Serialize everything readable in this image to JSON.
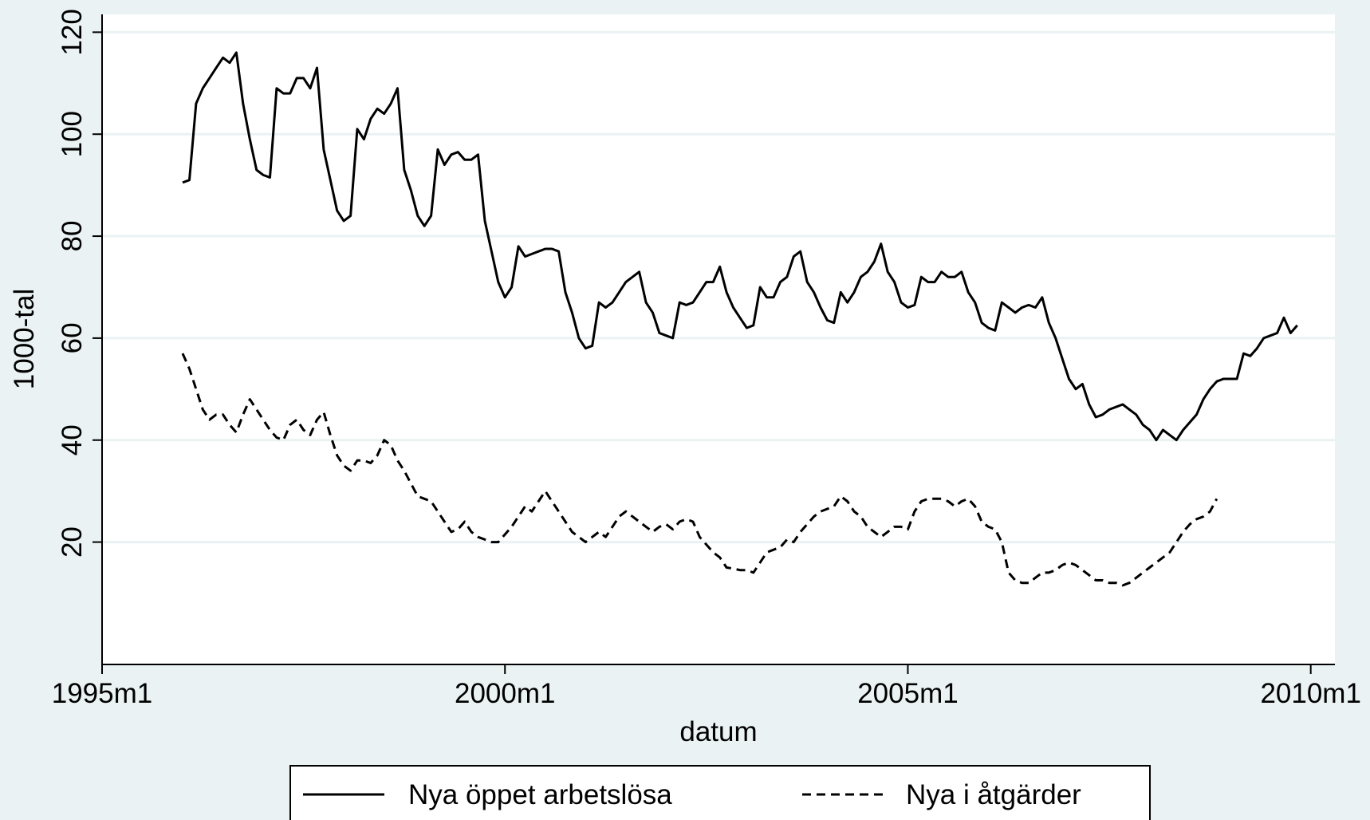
{
  "chart_data": {
    "type": "line",
    "xlabel": "datum",
    "ylabel": "1000-tal",
    "xlim": [
      1995.0,
      2010.3
    ],
    "ylim": [
      -4,
      123.5
    ],
    "x_ticks": [
      {
        "value": 1995.0,
        "label": "1995m1"
      },
      {
        "value": 2000.0,
        "label": "2000m1"
      },
      {
        "value": 2005.0,
        "label": "2005m1"
      },
      {
        "value": 2010.0,
        "label": "2010m1"
      }
    ],
    "y_ticks": [
      {
        "value": 20,
        "label": "20"
      },
      {
        "value": 40,
        "label": "40"
      },
      {
        "value": 60,
        "label": "60"
      },
      {
        "value": 80,
        "label": "80"
      },
      {
        "value": 100,
        "label": "100"
      },
      {
        "value": 120,
        "label": "120"
      }
    ],
    "grid": true,
    "legend_position": "bottom",
    "x_start": 1996.0,
    "x_step_months": 1,
    "series": [
      {
        "name": "Nya öppet arbetslösa",
        "style": "solid",
        "color": "#000000",
        "values": [
          90.5,
          91,
          106,
          109,
          111,
          113,
          115,
          114,
          116,
          106,
          99,
          93,
          92,
          91.5,
          109,
          108,
          108,
          111,
          111,
          109,
          113,
          97,
          91,
          85,
          83,
          84,
          101,
          99,
          103,
          105,
          104,
          106,
          109,
          93,
          89,
          84,
          82,
          84,
          97,
          94,
          96,
          96.5,
          95,
          95,
          96,
          83,
          77,
          71,
          68,
          70,
          78,
          76,
          76.5,
          77,
          77.5,
          77.5,
          77,
          69,
          65,
          60,
          58,
          58.5,
          67,
          66,
          67,
          69,
          71,
          72,
          73,
          67,
          65,
          61,
          60.5,
          60,
          67,
          66.5,
          67,
          69,
          71,
          71,
          74,
          69,
          66,
          64,
          62,
          62.5,
          70,
          68,
          68,
          71,
          72,
          76,
          77,
          71,
          69,
          66,
          63.5,
          63,
          69,
          67,
          69,
          72,
          73,
          75,
          78.5,
          73,
          71,
          67,
          66,
          66.5,
          72,
          71,
          71,
          73,
          72,
          72,
          73,
          69,
          67,
          63,
          62,
          61.5,
          67,
          66,
          65,
          66,
          66.5,
          66,
          68,
          63,
          60,
          56,
          52,
          50,
          51,
          47,
          44.5,
          45,
          46,
          46.5,
          47,
          46,
          45,
          43,
          42,
          40,
          42,
          41,
          40,
          42,
          43.5,
          45,
          48,
          50,
          51.5,
          52,
          52,
          52,
          57,
          56.5,
          58,
          60,
          60.5,
          61,
          64,
          61,
          62.5
        ]
      },
      {
        "name": "Nya i åtgärder",
        "style": "dashed",
        "color": "#000000",
        "values": [
          57,
          54,
          50,
          46,
          44,
          45,
          45,
          43,
          41.5,
          45,
          48,
          46,
          44,
          42,
          40.5,
          40,
          43,
          44,
          42,
          41,
          44,
          45.5,
          41,
          37,
          35,
          34,
          36,
          36,
          35.5,
          37,
          40,
          39,
          36,
          34,
          31.5,
          29,
          28.5,
          28,
          26,
          24,
          22,
          22.5,
          24,
          22,
          21,
          20.5,
          20,
          20,
          21.5,
          23,
          25,
          27,
          26,
          28,
          30,
          28,
          26,
          24,
          22,
          21,
          20,
          21,
          22,
          21,
          23,
          25,
          26,
          25,
          24,
          23,
          22,
          23,
          23.5,
          22.5,
          24,
          24.5,
          24,
          21,
          19.5,
          18,
          17,
          15,
          14.8,
          14.5,
          14.5,
          14,
          16,
          18,
          18.5,
          19,
          20.5,
          20,
          22,
          23.5,
          25,
          26,
          26.5,
          27,
          29,
          28,
          26,
          25,
          23,
          22,
          21,
          22,
          23,
          23,
          22.5,
          26,
          28,
          28.5,
          28.5,
          28.5,
          28,
          27,
          28,
          28.5,
          27,
          24,
          23,
          22.5,
          20,
          14,
          12.5,
          12,
          12,
          13,
          14,
          14,
          14.5,
          15.5,
          16,
          15.5,
          14.5,
          13.5,
          12.5,
          12.5,
          12,
          12,
          11.5,
          12,
          13,
          14,
          15,
          16,
          17,
          18,
          20,
          22,
          23.5,
          24.5,
          25,
          26,
          28.5
        ]
      }
    ]
  }
}
